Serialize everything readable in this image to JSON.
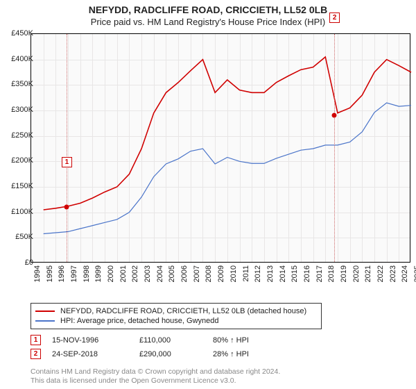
{
  "title": "NEFYDD, RADCLIFFE ROAD, CRICCIETH, LL52 0LB",
  "subtitle": "Price paid vs. HM Land Registry's House Price Index (HPI)",
  "chart": {
    "type": "line",
    "background_color": "#fafafa",
    "grid_color": "#e8e6e6",
    "border_color": "#000000",
    "ylim": [
      0,
      450000
    ],
    "ytick_step": 50000,
    "ytick_prefix": "£",
    "ytick_suffix": "K",
    "ytick_divisor": 1000,
    "x_years": [
      1994,
      1995,
      1996,
      1997,
      1998,
      1999,
      2000,
      2001,
      2002,
      2003,
      2004,
      2005,
      2006,
      2007,
      2008,
      2009,
      2010,
      2011,
      2012,
      2013,
      2014,
      2015,
      2016,
      2017,
      2018,
      2019,
      2020,
      2021,
      2022,
      2023,
      2024,
      2025
    ],
    "series": [
      {
        "name": "property",
        "label": "NEFYDD, RADCLIFFE ROAD, CRICCIETH, LL52 0LB (detached house)",
        "color": "#d00000",
        "line_width": 1.6,
        "values_by_year": {
          "1995": 105000,
          "1996": 108000,
          "1997": 112000,
          "1998": 118000,
          "1999": 128000,
          "2000": 140000,
          "2001": 150000,
          "2002": 175000,
          "2003": 225000,
          "2004": 295000,
          "2005": 335000,
          "2006": 355000,
          "2007": 378000,
          "2008": 400000,
          "2009": 335000,
          "2010": 360000,
          "2011": 340000,
          "2012": 335000,
          "2013": 335000,
          "2014": 355000,
          "2015": 368000,
          "2016": 380000,
          "2017": 385000,
          "2018": 405000,
          "2019": 295000,
          "2020": 305000,
          "2021": 330000,
          "2022": 375000,
          "2023": 400000,
          "2024": 388000,
          "2025": 375000
        }
      },
      {
        "name": "hpi",
        "label": "HPI: Average price, detached house, Gwynedd",
        "color": "#4a74c9",
        "line_width": 1.2,
        "values_by_year": {
          "1995": 58000,
          "1996": 60000,
          "1997": 62000,
          "1998": 68000,
          "1999": 74000,
          "2000": 80000,
          "2001": 86000,
          "2002": 100000,
          "2003": 130000,
          "2004": 170000,
          "2005": 195000,
          "2006": 205000,
          "2007": 220000,
          "2008": 225000,
          "2009": 195000,
          "2010": 208000,
          "2011": 200000,
          "2012": 196000,
          "2013": 196000,
          "2014": 206000,
          "2015": 214000,
          "2016": 222000,
          "2017": 225000,
          "2018": 232000,
          "2019": 232000,
          "2020": 238000,
          "2021": 258000,
          "2022": 296000,
          "2023": 315000,
          "2024": 308000,
          "2025": 310000
        }
      }
    ],
    "markers": [
      {
        "id": "1",
        "year": 1996.88,
        "value": 110000,
        "box_offset_y": -72
      },
      {
        "id": "2",
        "year": 2018.73,
        "value": 290000,
        "box_offset_y": -148
      }
    ]
  },
  "legend": {
    "rows": [
      {
        "color": "#d00000",
        "text": "NEFYDD, RADCLIFFE ROAD, CRICCIETH, LL52 0LB (detached house)"
      },
      {
        "color": "#4a74c9",
        "text": "HPI: Average price, detached house, Gwynedd"
      }
    ]
  },
  "annotations": [
    {
      "id": "1",
      "date": "15-NOV-1996",
      "price": "£110,000",
      "delta": "80% ↑ HPI"
    },
    {
      "id": "2",
      "date": "24-SEP-2018",
      "price": "£290,000",
      "delta": "28% ↑ HPI"
    }
  ],
  "footer": {
    "line1": "Contains HM Land Registry data © Crown copyright and database right 2024.",
    "line2": "This data is licensed under the Open Government Licence v3.0."
  }
}
